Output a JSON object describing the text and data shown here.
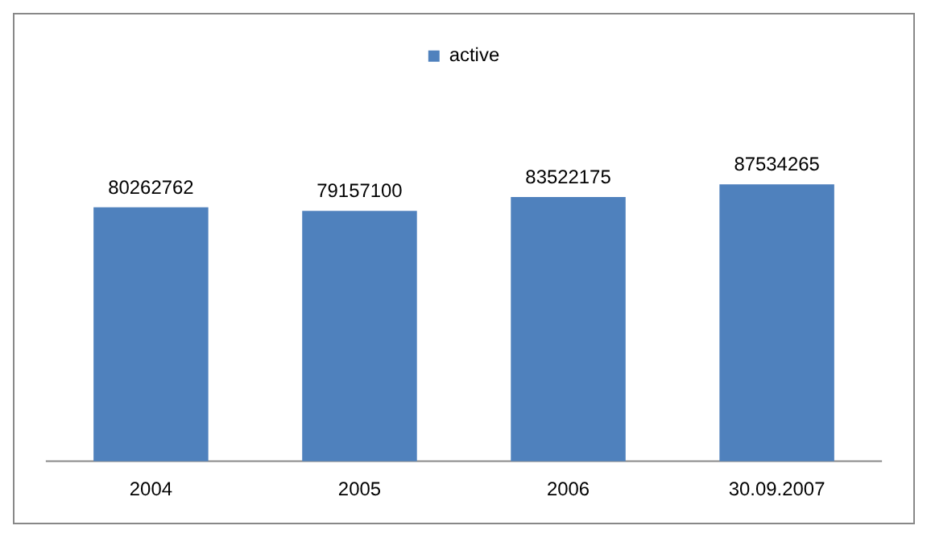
{
  "chart_data": {
    "type": "bar",
    "categories": [
      "2004",
      "2005",
      "2006",
      "30.09.2007"
    ],
    "series": [
      {
        "name": "active",
        "color": "#4f81bd",
        "values": [
          80262762,
          79157100,
          83522175,
          87534265
        ]
      }
    ],
    "data_labels": true,
    "legend": "top",
    "grid": false,
    "tick_labels": "x"
  }
}
